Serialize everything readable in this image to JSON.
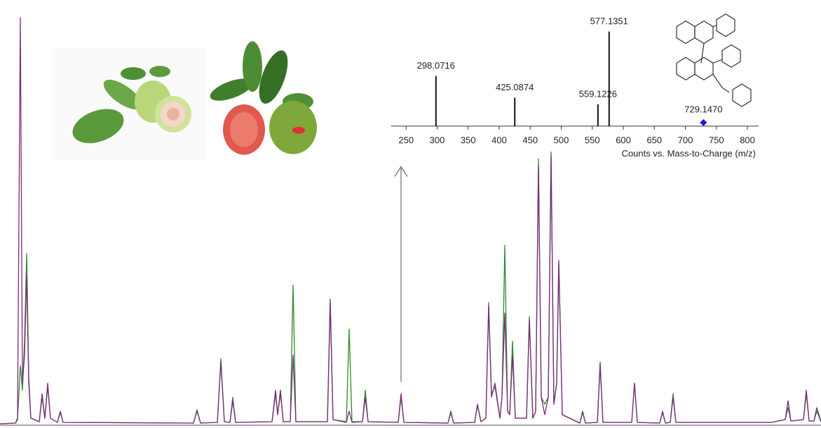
{
  "chart_data": [
    {
      "type": "line",
      "x": [
        0,
        22,
        25,
        29,
        32,
        35,
        38,
        41,
        44,
        56,
        60,
        64,
        68,
        72,
        82,
        86,
        90,
        276,
        281,
        286,
        310,
        315,
        320,
        328,
        332,
        336,
        388,
        393,
        396,
        400,
        404,
        414,
        418,
        422,
        467,
        471,
        475,
        494,
        498,
        502,
        517,
        521,
        525,
        568,
        572,
        576,
        639,
        643,
        647,
        677,
        681,
        686,
        693,
        697,
        701,
        706,
        713,
        716,
        720,
        724,
        727,
        731,
        735,
        751,
        755,
        760,
        764,
        768,
        772,
        777,
        782,
        786,
        790,
        794,
        797,
        802,
        827,
        831,
        835,
        852,
        856,
        860,
        901,
        905,
        909,
        941,
        945,
        949,
        956,
        960,
        964,
        1100,
        1120,
        1124,
        1128,
        1146,
        1150,
        1154,
        1161,
        1165,
        1171
      ],
      "xlim": [
        0,
        1171
      ],
      "ylim": [
        0,
        590
      ],
      "series": [
        {
          "color": "#2e8b2e",
          "values": [
            2,
            3,
            8,
            85,
            50,
            120,
            245,
            70,
            10,
            5,
            40,
            10,
            55,
            10,
            4,
            18,
            4,
            3,
            20,
            3,
            4,
            95,
            5,
            4,
            40,
            4,
            5,
            45,
            15,
            45,
            5,
            5,
            200,
            5,
            5,
            175,
            8,
            5,
            137,
            5,
            5,
            50,
            5,
            4,
            40,
            4,
            3,
            18,
            3,
            4,
            28,
            5,
            10,
            175,
            45,
            55,
            10,
            40,
            257,
            20,
            15,
            120,
            10,
            10,
            155,
            10,
            20,
            380,
            40,
            30,
            40,
            390,
            30,
            60,
            230,
            15,
            3,
            18,
            3,
            4,
            85,
            4,
            4,
            60,
            4,
            3,
            18,
            3,
            4,
            45,
            4,
            4,
            8,
            25,
            6,
            8,
            45,
            6,
            6,
            20,
            5
          ]
        },
        {
          "color": "#7b2a7b",
          "values": [
            2,
            3,
            10,
            582,
            60,
            100,
            215,
            60,
            10,
            5,
            45,
            10,
            60,
            10,
            4,
            20,
            4,
            3,
            22,
            3,
            4,
            90,
            5,
            4,
            35,
            4,
            5,
            50,
            15,
            50,
            5,
            5,
            100,
            5,
            5,
            180,
            8,
            4,
            20,
            4,
            5,
            40,
            5,
            4,
            45,
            4,
            3,
            20,
            3,
            4,
            30,
            5,
            10,
            170,
            40,
            60,
            10,
            40,
            160,
            20,
            15,
            100,
            10,
            10,
            150,
            10,
            20,
            370,
            40,
            15,
            40,
            385,
            30,
            60,
            235,
            15,
            3,
            20,
            3,
            4,
            90,
            4,
            4,
            60,
            4,
            3,
            20,
            3,
            4,
            40,
            4,
            4,
            8,
            35,
            6,
            8,
            50,
            6,
            6,
            25,
            5
          ]
        }
      ]
    },
    {
      "type": "bar",
      "x": [
        298.0716,
        425.0874,
        559.1226,
        577.1351
      ],
      "values": [
        53,
        30,
        23,
        100
      ],
      "color": "#111111",
      "xlim": [
        226,
        818
      ],
      "ylim": [
        0,
        100
      ],
      "xticks": [
        250,
        300,
        350,
        400,
        450,
        500,
        550,
        600,
        650,
        700,
        750,
        800
      ],
      "xlabel": "Counts vs. Mass-to-Charge (m/z)",
      "precursor": {
        "value": 729.147,
        "label": "729.1470"
      },
      "precursor_color": "#1a1adb"
    }
  ]
}
